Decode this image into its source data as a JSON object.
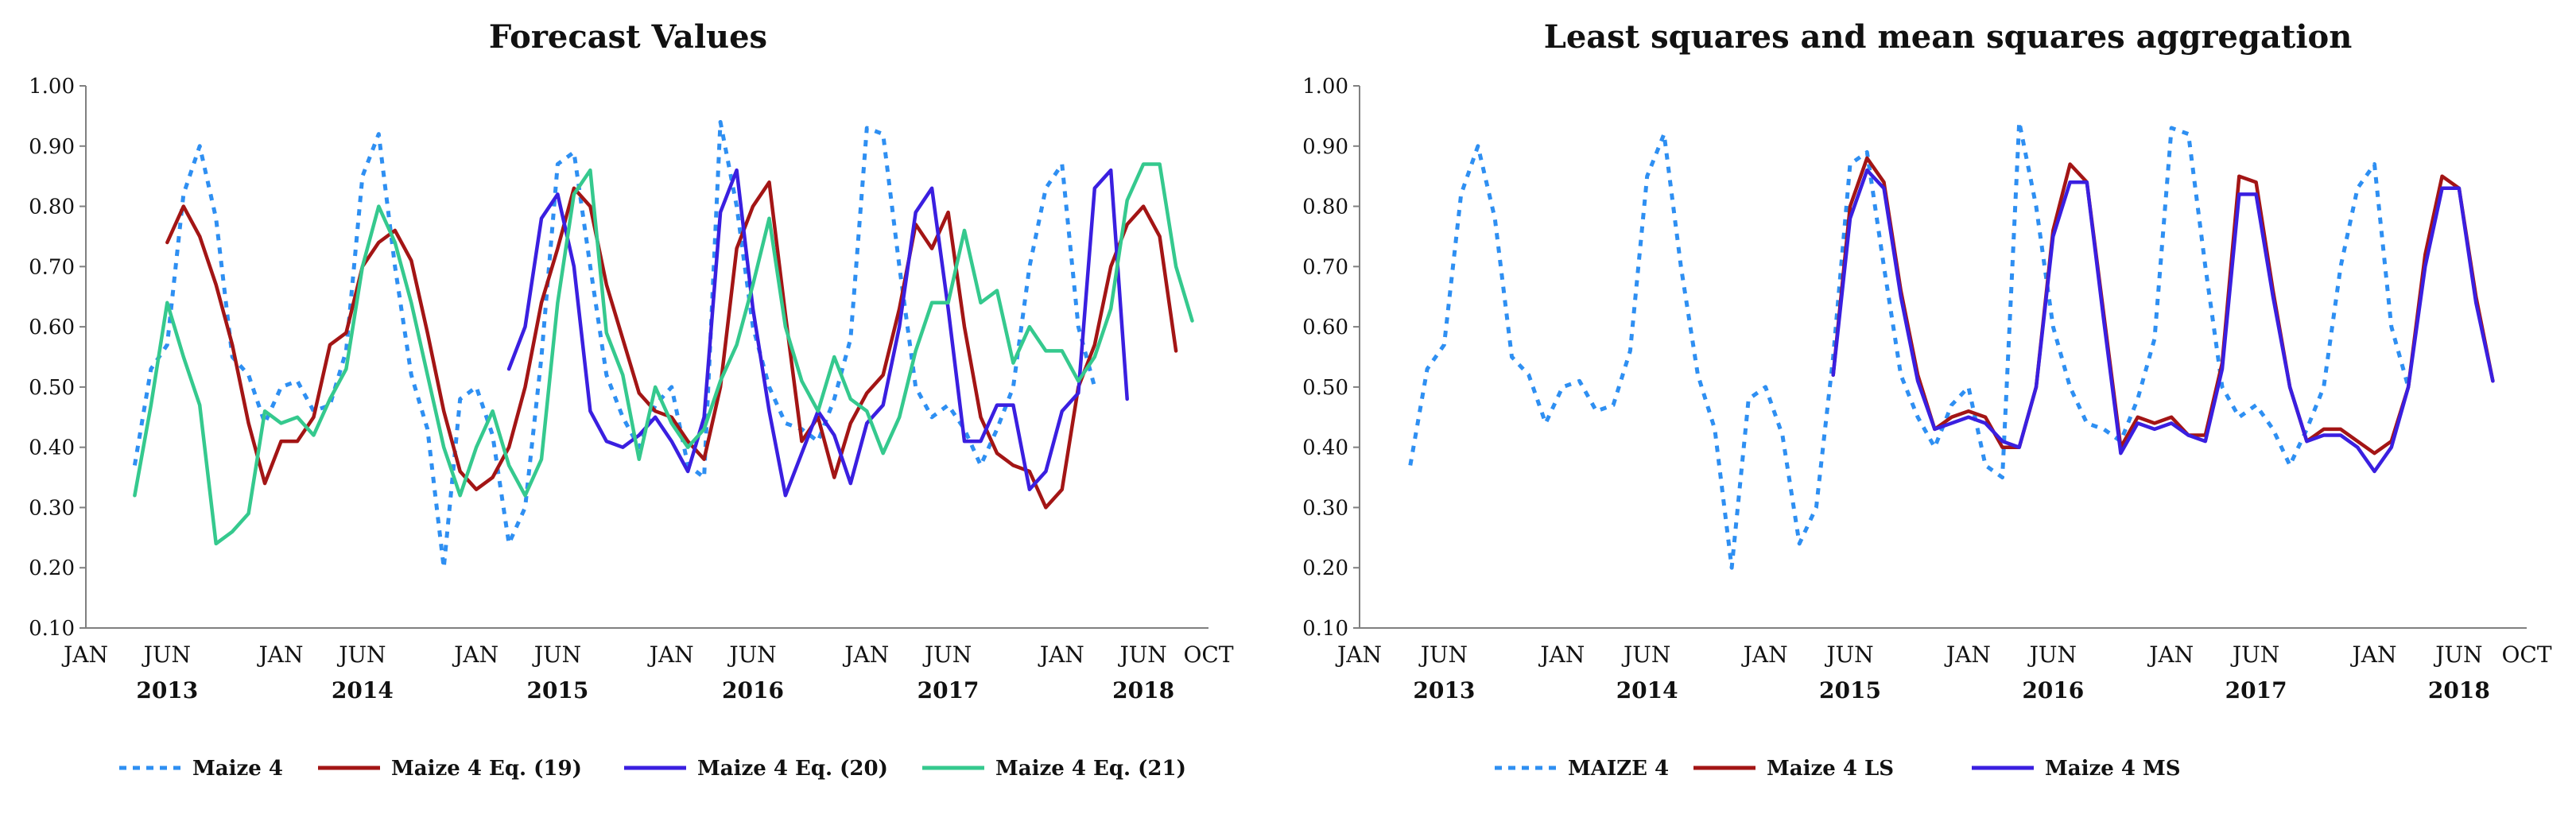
{
  "chart_data": [
    {
      "type": "line",
      "title": "Forecast Values",
      "xlabel": "",
      "ylabel": "",
      "ylim": [
        0.1,
        1.0
      ],
      "y_ticks": [
        "0.10",
        "0.20",
        "0.30",
        "0.40",
        "0.50",
        "0.60",
        "0.70",
        "0.80",
        "0.90",
        "1.00"
      ],
      "month_labels": [
        {
          "t": 0,
          "label": "JAN"
        },
        {
          "t": 5,
          "label": "JUN"
        },
        {
          "t": 12,
          "label": "JAN"
        },
        {
          "t": 17,
          "label": "JUN"
        },
        {
          "t": 24,
          "label": "JAN"
        },
        {
          "t": 29,
          "label": "JUN"
        },
        {
          "t": 36,
          "label": "JAN"
        },
        {
          "t": 41,
          "label": "JUN"
        },
        {
          "t": 48,
          "label": "JAN"
        },
        {
          "t": 53,
          "label": "JUN"
        },
        {
          "t": 60,
          "label": "JAN"
        },
        {
          "t": 65,
          "label": "JUN"
        },
        {
          "t": 69,
          "label": "OCT"
        }
      ],
      "year_labels": [
        {
          "t": 5,
          "label": "2013"
        },
        {
          "t": 17,
          "label": "2014"
        },
        {
          "t": 29,
          "label": "2015"
        },
        {
          "t": 41,
          "label": "2016"
        },
        {
          "t": 53,
          "label": "2017"
        },
        {
          "t": 65,
          "label": "2018"
        }
      ],
      "x_range": [
        0,
        69
      ],
      "series": [
        {
          "name": "Maize 4",
          "color": "#2e8ff2",
          "dash": true,
          "start": 3,
          "values": [
            0.37,
            0.53,
            0.57,
            0.82,
            0.9,
            0.78,
            0.55,
            0.52,
            0.44,
            0.5,
            0.51,
            0.46,
            0.47,
            0.56,
            0.85,
            0.92,
            0.7,
            0.52,
            0.43,
            0.2,
            0.48,
            0.5,
            0.42,
            0.24,
            0.3,
            0.55,
            0.87,
            0.89,
            0.7,
            0.52,
            0.45,
            0.4,
            0.47,
            0.5,
            0.37,
            0.35,
            0.94,
            0.8,
            0.6,
            0.5,
            0.44,
            0.43,
            0.41,
            0.48,
            0.58,
            0.93,
            0.92,
            0.7,
            0.5,
            0.45,
            0.47,
            0.43,
            0.37,
            0.43,
            0.5,
            0.7,
            0.83,
            0.87,
            0.6,
            0.5
          ]
        },
        {
          "name": "Maize 4 Eq. (19)",
          "color": "#a31515",
          "dash": false,
          "start": 5,
          "values": [
            0.74,
            0.8,
            0.75,
            0.67,
            0.57,
            0.44,
            0.34,
            0.41,
            0.41,
            0.45,
            0.57,
            0.59,
            0.7,
            0.74,
            0.76,
            0.71,
            0.59,
            0.46,
            0.36,
            0.33,
            0.35,
            0.4,
            0.5,
            0.64,
            0.73,
            0.83,
            0.8,
            0.67,
            0.58,
            0.49,
            0.46,
            0.45,
            0.41,
            0.38,
            0.5,
            0.73,
            0.8,
            0.84,
            0.62,
            0.41,
            0.45,
            0.35,
            0.44,
            0.49,
            0.52,
            0.63,
            0.77,
            0.73,
            0.79,
            0.6,
            0.45,
            0.39,
            0.37,
            0.36,
            0.3,
            0.33,
            0.5,
            0.57,
            0.7,
            0.77,
            0.8,
            0.75,
            0.56
          ]
        },
        {
          "name": "Maize 4 Eq. (20)",
          "color": "#3a1fe0",
          "dash": false,
          "start": 26,
          "values": [
            0.53,
            0.6,
            0.78,
            0.82,
            0.7,
            0.46,
            0.41,
            0.4,
            0.42,
            0.45,
            0.41,
            0.36,
            0.45,
            0.79,
            0.86,
            0.63,
            0.46,
            0.32,
            0.39,
            0.46,
            0.42,
            0.34,
            0.44,
            0.47,
            0.6,
            0.79,
            0.83,
            0.63,
            0.41,
            0.41,
            0.47,
            0.47,
            0.33,
            0.36,
            0.46,
            0.49,
            0.83,
            0.86,
            0.48
          ]
        },
        {
          "name": "Maize 4 Eq. (21)",
          "color": "#35c98e",
          "dash": false,
          "start": 3,
          "values": [
            0.32,
            0.47,
            0.64,
            0.55,
            0.47,
            0.24,
            0.26,
            0.29,
            0.46,
            0.44,
            0.45,
            0.42,
            0.48,
            0.53,
            0.7,
            0.8,
            0.74,
            0.64,
            0.52,
            0.4,
            0.32,
            0.4,
            0.46,
            0.37,
            0.32,
            0.38,
            0.64,
            0.82,
            0.86,
            0.59,
            0.52,
            0.38,
            0.5,
            0.44,
            0.4,
            0.43,
            0.51,
            0.57,
            0.67,
            0.78,
            0.6,
            0.51,
            0.46,
            0.55,
            0.48,
            0.46,
            0.39,
            0.45,
            0.56,
            0.64,
            0.64,
            0.76,
            0.64,
            0.66,
            0.54,
            0.6,
            0.56,
            0.56,
            0.51,
            0.55,
            0.63,
            0.81,
            0.87,
            0.87,
            0.7,
            0.61
          ]
        }
      ],
      "legend_position": "bottom"
    },
    {
      "type": "line",
      "title": "Least squares and mean squares aggregation",
      "xlabel": "",
      "ylabel": "",
      "ylim": [
        0.1,
        1.0
      ],
      "y_ticks": [
        "0.10",
        "0.20",
        "0.30",
        "0.40",
        "0.50",
        "0.60",
        "0.70",
        "0.80",
        "0.90",
        "1.00"
      ],
      "month_labels": [
        {
          "t": 0,
          "label": "JAN"
        },
        {
          "t": 5,
          "label": "JUN"
        },
        {
          "t": 12,
          "label": "JAN"
        },
        {
          "t": 17,
          "label": "JUN"
        },
        {
          "t": 24,
          "label": "JAN"
        },
        {
          "t": 29,
          "label": "JUN"
        },
        {
          "t": 36,
          "label": "JAN"
        },
        {
          "t": 41,
          "label": "JUN"
        },
        {
          "t": 48,
          "label": "JAN"
        },
        {
          "t": 53,
          "label": "JUN"
        },
        {
          "t": 60,
          "label": "JAN"
        },
        {
          "t": 65,
          "label": "JUN"
        },
        {
          "t": 69,
          "label": "OCT"
        }
      ],
      "year_labels": [
        {
          "t": 5,
          "label": "2013"
        },
        {
          "t": 17,
          "label": "2014"
        },
        {
          "t": 29,
          "label": "2015"
        },
        {
          "t": 41,
          "label": "2016"
        },
        {
          "t": 53,
          "label": "2017"
        },
        {
          "t": 65,
          "label": "2018"
        }
      ],
      "x_range": [
        0,
        69
      ],
      "series": [
        {
          "name": "MAIZE 4",
          "color": "#2e8ff2",
          "dash": true,
          "start": 3,
          "values": [
            0.37,
            0.53,
            0.57,
            0.82,
            0.9,
            0.78,
            0.55,
            0.52,
            0.44,
            0.5,
            0.51,
            0.46,
            0.47,
            0.56,
            0.85,
            0.92,
            0.7,
            0.52,
            0.43,
            0.2,
            0.48,
            0.5,
            0.42,
            0.24,
            0.3,
            0.55,
            0.87,
            0.89,
            0.7,
            0.52,
            0.45,
            0.4,
            0.47,
            0.5,
            0.37,
            0.35,
            0.94,
            0.8,
            0.6,
            0.5,
            0.44,
            0.43,
            0.41,
            0.48,
            0.58,
            0.93,
            0.92,
            0.7,
            0.5,
            0.45,
            0.47,
            0.43,
            0.37,
            0.43,
            0.5,
            0.7,
            0.83,
            0.87,
            0.6,
            0.5
          ]
        },
        {
          "name": "Maize 4 LS",
          "color": "#a31515",
          "dash": false,
          "start": 28,
          "values": [
            0.52,
            0.8,
            0.88,
            0.84,
            0.66,
            0.52,
            0.43,
            0.45,
            0.46,
            0.45,
            0.4,
            0.4,
            0.5,
            0.76,
            0.87,
            0.84,
            0.62,
            0.4,
            0.45,
            0.44,
            0.45,
            0.42,
            0.42,
            0.54,
            0.85,
            0.84,
            0.66,
            0.5,
            0.41,
            0.43,
            0.43,
            0.41,
            0.39,
            0.41,
            0.5,
            0.72,
            0.85,
            0.83,
            0.65,
            0.51
          ]
        },
        {
          "name": "Maize 4 MS",
          "color": "#3a1fe0",
          "dash": false,
          "start": 28,
          "values": [
            0.52,
            0.78,
            0.86,
            0.83,
            0.65,
            0.51,
            0.43,
            0.44,
            0.45,
            0.44,
            0.41,
            0.4,
            0.5,
            0.75,
            0.84,
            0.84,
            0.61,
            0.39,
            0.44,
            0.43,
            0.44,
            0.42,
            0.41,
            0.53,
            0.82,
            0.82,
            0.65,
            0.5,
            0.41,
            0.42,
            0.42,
            0.4,
            0.36,
            0.4,
            0.5,
            0.7,
            0.83,
            0.83,
            0.64,
            0.51
          ]
        }
      ],
      "legend_position": "bottom"
    }
  ]
}
